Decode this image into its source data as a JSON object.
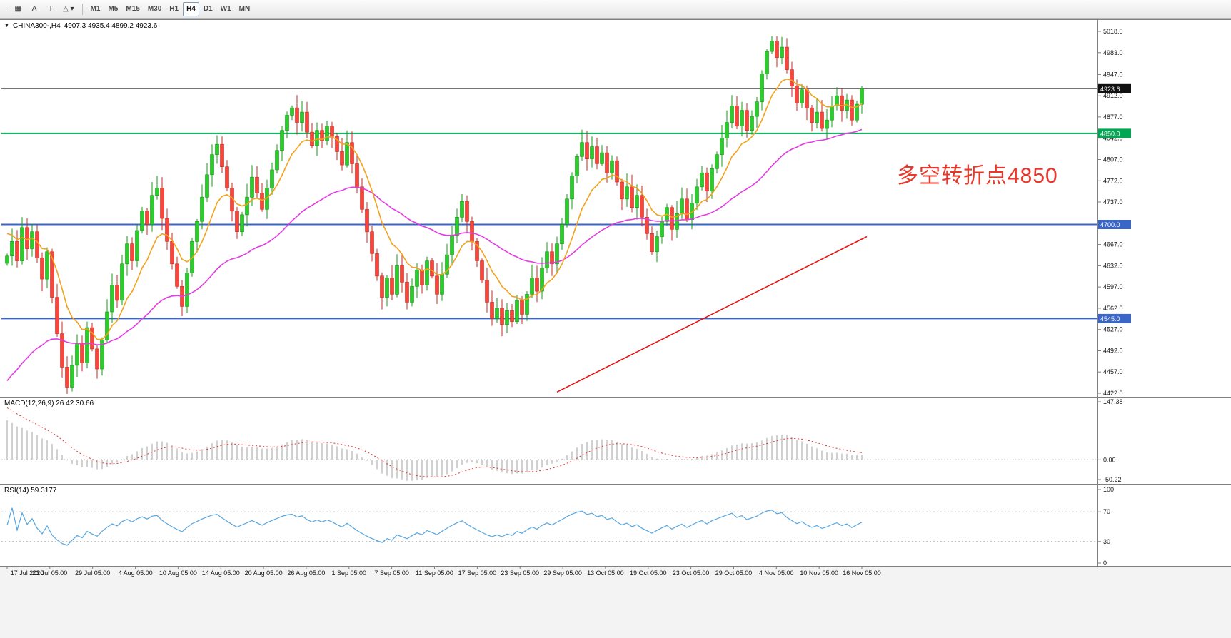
{
  "toolbar": {
    "tools": [
      {
        "name": "chart-grid-tool-button",
        "icon": "grid-icon",
        "glyph": "▦"
      },
      {
        "name": "text-annotation-tool-button",
        "icon": "letter-a-icon",
        "glyph": "A"
      },
      {
        "name": "text-label-tool-button",
        "icon": "letter-t-icon",
        "glyph": "T"
      },
      {
        "name": "shapes-tool-button",
        "icon": "shapes-dropdown-icon",
        "glyph": "△ ▾"
      }
    ],
    "timeframes": [
      "M1",
      "M5",
      "M15",
      "M30",
      "H1",
      "H4",
      "D1",
      "W1",
      "MN"
    ],
    "active_timeframe": "H4"
  },
  "chart": {
    "header_symbol": "CHINA300-,H4",
    "header_ohlc": "4907.3 4935.4 4899.2 4923.6",
    "annotation": {
      "text": "多空转折点4850",
      "color": "#e8382a"
    },
    "y_axis_labels": [
      "5018.0",
      "4983.0",
      "4947.0",
      "4912.0",
      "4877.0",
      "4842.0",
      "4807.0",
      "4772.0",
      "4737.0",
      "4702.0",
      "4667.0",
      "4632.0",
      "4597.0",
      "4562.0",
      "4527.0",
      "4492.0",
      "4457.0",
      "4422.0"
    ],
    "x_axis_labels": [
      "17 Jul 2020",
      "23 Jul 05:00",
      "29 Jul 05:00",
      "4 Aug 05:00",
      "10 Aug 05:00",
      "14 Aug 05:00",
      "20 Aug 05:00",
      "26 Aug 05:00",
      "1 Sep 05:00",
      "7 Sep 05:00",
      "11 Sep 05:00",
      "17 Sep 05:00",
      "23 Sep 05:00",
      "29 Sep 05:00",
      "13 Oct 05:00",
      "19 Oct 05:00",
      "23 Oct 05:00",
      "29 Oct 05:00",
      "4 Nov 05:00",
      "10 Nov 05:00",
      "16 Nov 05:00"
    ],
    "price_badges": [
      {
        "label": "4923.6",
        "value": 4923.6,
        "color": "#111111"
      },
      {
        "label": "4850.0",
        "value": 4850.0,
        "color": "#00a651"
      },
      {
        "label": "4700.0",
        "value": 4700.0,
        "color": "#3a66c8"
      },
      {
        "label": "4545.0",
        "value": 4545.0,
        "color": "#3a66c8"
      }
    ]
  },
  "macd": {
    "label": "MACD(12,26,9) 26.42 30.66",
    "scale": [
      "147.38",
      "0.00",
      "-50.22"
    ]
  },
  "rsi": {
    "label": "RSI(14) 59.3177",
    "scale": [
      "100",
      "70",
      "30",
      "0"
    ]
  },
  "chart_data": {
    "type": "candlestick",
    "symbol": "CHINA300-",
    "timeframe": "H4",
    "title": "CHINA300-,H4",
    "current_bar": {
      "open": 4907.3,
      "high": 4935.4,
      "low": 4899.2,
      "close": 4923.6
    },
    "y_range": [
      4422.0,
      5018.0
    ],
    "x_range_dates": [
      "17 Jul 2020",
      "16 Nov 2020 05:00"
    ],
    "closes": [
      4648,
      4672,
      4640,
      4695,
      4660,
      4688,
      4645,
      4610,
      4655,
      4580,
      4520,
      4465,
      4432,
      4468,
      4505,
      4472,
      4530,
      4495,
      4462,
      4510,
      4556,
      4600,
      4575,
      4635,
      4668,
      4640,
      4690,
      4722,
      4700,
      4748,
      4760,
      4710,
      4672,
      4635,
      4598,
      4565,
      4620,
      4672,
      4705,
      4745,
      4782,
      4815,
      4832,
      4795,
      4760,
      4722,
      4688,
      4716,
      4745,
      4778,
      4752,
      4725,
      4760,
      4790,
      4822,
      4855,
      4880,
      4892,
      4868,
      4885,
      4852,
      4830,
      4855,
      4838,
      4862,
      4845,
      4820,
      4798,
      4835,
      4800,
      4762,
      4725,
      4688,
      4652,
      4615,
      4580,
      4612,
      4585,
      4632,
      4605,
      4572,
      4598,
      4625,
      4600,
      4640,
      4615,
      4585,
      4618,
      4650,
      4682,
      4712,
      4738,
      4705,
      4672,
      4640,
      4608,
      4572,
      4545,
      4562,
      4535,
      4558,
      4540,
      4575,
      4552,
      4585,
      4612,
      4590,
      4628,
      4655,
      4635,
      4668,
      4700,
      4742,
      4780,
      4812,
      4835,
      4808,
      4828,
      4800,
      4818,
      4785,
      4805,
      4770,
      4742,
      4762,
      4728,
      4748,
      4712,
      4685,
      4655,
      4680,
      4705,
      4728,
      4692,
      4718,
      4742,
      4708,
      4735,
      4762,
      4785,
      4755,
      4792,
      4815,
      4842,
      4868,
      4895,
      4862,
      4888,
      4855,
      4878,
      4902,
      4948,
      4985,
      5002,
      4975,
      4992,
      4955,
      4928,
      4900,
      4922,
      4892,
      4868,
      4885,
      4858,
      4872,
      4895,
      4912,
      4888,
      4905,
      4872,
      4898,
      4923.6
    ],
    "horizontal_levels": [
      {
        "value": 4923.6,
        "color": "#444444",
        "width": 1
      },
      {
        "value": 4850.0,
        "color": "#00a651",
        "width": 2
      },
      {
        "value": 4700.0,
        "color": "#3a66c8",
        "width": 2
      },
      {
        "value": 4545.0,
        "color": "#3a66c8",
        "width": 2
      }
    ],
    "trendline": {
      "color": "#ee1111",
      "from_bar": 110,
      "from_price": 4424,
      "to_bar": 172,
      "to_price": 4680
    },
    "overlays": [
      {
        "name": "ma-fast",
        "color": "#f2a21c",
        "period": 10
      },
      {
        "name": "ma-slow",
        "color": "#e23ce2",
        "period": 44
      }
    ],
    "indicators": {
      "macd": {
        "params": [
          12,
          26,
          9
        ],
        "main_value": 26.42,
        "signal_value": 30.66,
        "scale": [
          147.38,
          0.0,
          -50.22
        ]
      },
      "rsi": {
        "period": 14,
        "value": 59.3177,
        "levels": [
          70,
          30
        ],
        "scale": [
          100,
          0
        ]
      }
    },
    "colors": {
      "up": "#2fca2f",
      "up_stroke": "#119c11",
      "down": "#f4483f",
      "down_stroke": "#c92a22",
      "ma_fast": "#f2a21c",
      "ma_slow": "#e23ce2",
      "trend": "#ee1111",
      "macd_hist": "#b8b8b8",
      "macd_signal": "#e03030",
      "rsi_line": "#58a6e0"
    }
  }
}
